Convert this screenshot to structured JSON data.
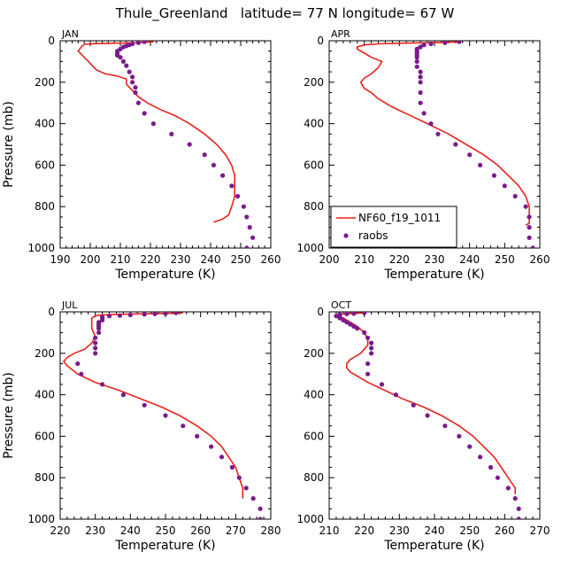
{
  "figure_title": "Thule_Greenland   latitude= 77 N longitude= 67 W",
  "colors": {
    "model": "#e8231c",
    "obs": "#7b1a8c",
    "axis": "#000000"
  },
  "legend": {
    "placement": "lower-right of APR panel",
    "model_label": "NF60_f19_1011",
    "obs_label": "raobs"
  },
  "chart_data": [
    {
      "type": "line",
      "title": "JAN",
      "xlabel": "Temperature (K)",
      "ylabel": "Pressure (mb)",
      "xlim": [
        190,
        260
      ],
      "ylim": [
        1000,
        0
      ],
      "xticks": [
        190,
        200,
        210,
        220,
        230,
        240,
        250,
        260
      ],
      "yticks": [
        0,
        200,
        400,
        600,
        800,
        1000
      ],
      "series": [
        {
          "name": "NF60_f19_1011",
          "kind": "line",
          "points": [
            [
              221,
              5
            ],
            [
              215,
              10
            ],
            [
              208,
              12
            ],
            [
              201,
              14
            ],
            [
              198,
              17
            ],
            [
              197,
              30
            ],
            [
              196,
              50
            ],
            [
              198,
              80
            ],
            [
              200,
              110
            ],
            [
              202,
              140
            ],
            [
              205,
              160
            ],
            [
              209,
              170
            ],
            [
              212,
              185
            ],
            [
              212,
              210
            ],
            [
              214,
              240
            ],
            [
              216,
              270
            ],
            [
              219,
              300
            ],
            [
              223,
              330
            ],
            [
              228,
              360
            ],
            [
              233,
              400
            ],
            [
              238,
              450
            ],
            [
              242,
              500
            ],
            [
              245,
              550
            ],
            [
              247,
              600
            ],
            [
              248,
              650
            ],
            [
              248,
              700
            ],
            [
              248,
              750
            ],
            [
              247,
              800
            ],
            [
              246,
              840
            ],
            [
              244,
              860
            ],
            [
              241,
              875
            ]
          ]
        },
        {
          "name": "raobs",
          "kind": "points",
          "points": [
            [
              218,
              5
            ],
            [
              216,
              10
            ],
            [
              214,
              15
            ],
            [
              213,
              20
            ],
            [
              212,
              25
            ],
            [
              211,
              30
            ],
            [
              210,
              40
            ],
            [
              209,
              50
            ],
            [
              209,
              60
            ],
            [
              209,
              70
            ],
            [
              210,
              80
            ],
            [
              211,
              100
            ],
            [
              212,
              120
            ],
            [
              213,
              150
            ],
            [
              214,
              175
            ],
            [
              214,
              200
            ],
            [
              215,
              225
            ],
            [
              215,
              250
            ],
            [
              216,
              300
            ],
            [
              218,
              350
            ],
            [
              221,
              400
            ],
            [
              227,
              450
            ],
            [
              233,
              500
            ],
            [
              238,
              550
            ],
            [
              241,
              600
            ],
            [
              244,
              650
            ],
            [
              247,
              700
            ],
            [
              249,
              750
            ],
            [
              251,
              800
            ],
            [
              252,
              850
            ],
            [
              253,
              900
            ],
            [
              254,
              950
            ],
            [
              252,
              1000
            ]
          ]
        }
      ]
    },
    {
      "type": "line",
      "title": "APR",
      "xlabel": "Temperature (K)",
      "ylabel": "",
      "xlim": [
        200,
        260
      ],
      "ylim": [
        1000,
        0
      ],
      "xticks": [
        200,
        210,
        220,
        230,
        240,
        250,
        260
      ],
      "yticks": [
        0,
        200,
        400,
        600,
        800,
        1000
      ],
      "series": [
        {
          "name": "NF60_f19_1011",
          "kind": "line",
          "points": [
            [
              237,
              5
            ],
            [
              232,
              8
            ],
            [
              227,
              10
            ],
            [
              220,
              12
            ],
            [
              214,
              15
            ],
            [
              210,
              20
            ],
            [
              208,
              30
            ],
            [
              208,
              40
            ],
            [
              210,
              60
            ],
            [
              212,
              80
            ],
            [
              215,
              100
            ],
            [
              214,
              130
            ],
            [
              212,
              160
            ],
            [
              210,
              180
            ],
            [
              209,
              200
            ],
            [
              210,
              230
            ],
            [
              212,
              250
            ],
            [
              214,
              280
            ],
            [
              218,
              320
            ],
            [
              223,
              360
            ],
            [
              228,
              400
            ],
            [
              234,
              450
            ],
            [
              239,
              500
            ],
            [
              244,
              550
            ],
            [
              248,
              600
            ],
            [
              251,
              650
            ],
            [
              254,
              700
            ],
            [
              256,
              750
            ],
            [
              257,
              800
            ],
            [
              257,
              850
            ],
            [
              257,
              880
            ],
            [
              256,
              890
            ]
          ]
        },
        {
          "name": "raobs",
          "kind": "points",
          "points": [
            [
              237,
              5
            ],
            [
              233,
              10
            ],
            [
              229,
              15
            ],
            [
              227,
              20
            ],
            [
              226,
              30
            ],
            [
              225,
              40
            ],
            [
              225,
              50
            ],
            [
              225,
              60
            ],
            [
              225,
              70
            ],
            [
              225,
              80
            ],
            [
              225,
              100
            ],
            [
              225,
              125
            ],
            [
              226,
              150
            ],
            [
              226,
              175
            ],
            [
              226,
              200
            ],
            [
              226,
              250
            ],
            [
              226,
              300
            ],
            [
              227,
              350
            ],
            [
              229,
              400
            ],
            [
              231,
              450
            ],
            [
              236,
              500
            ],
            [
              240,
              550
            ],
            [
              243,
              600
            ],
            [
              247,
              650
            ],
            [
              250,
              700
            ],
            [
              253,
              750
            ],
            [
              256,
              800
            ],
            [
              257,
              850
            ],
            [
              257,
              900
            ],
            [
              257,
              950
            ],
            [
              258,
              1000
            ]
          ]
        }
      ]
    },
    {
      "type": "line",
      "title": "JUL",
      "xlabel": "Temperature (K)",
      "ylabel": "Pressure (mb)",
      "xlim": [
        220,
        280
      ],
      "ylim": [
        1000,
        0
      ],
      "xticks": [
        220,
        230,
        240,
        250,
        260,
        270,
        280
      ],
      "yticks": [
        0,
        200,
        400,
        600,
        800,
        1000
      ],
      "series": [
        {
          "name": "NF60_f19_1011",
          "kind": "line",
          "points": [
            [
              255,
              5
            ],
            [
              249,
              8
            ],
            [
              243,
              10
            ],
            [
              237,
              12
            ],
            [
              233,
              14
            ],
            [
              231,
              16
            ],
            [
              230,
              20
            ],
            [
              229,
              30
            ],
            [
              229,
              50
            ],
            [
              229,
              80
            ],
            [
              230,
              120
            ],
            [
              229,
              150
            ],
            [
              227,
              180
            ],
            [
              224,
              200
            ],
            [
              222,
              220
            ],
            [
              221,
              240
            ],
            [
              222,
              260
            ],
            [
              225,
              300
            ],
            [
              230,
              340
            ],
            [
              237,
              380
            ],
            [
              243,
              420
            ],
            [
              249,
              460
            ],
            [
              254,
              500
            ],
            [
              259,
              550
            ],
            [
              263,
              600
            ],
            [
              266,
              650
            ],
            [
              268,
              700
            ],
            [
              270,
              750
            ],
            [
              271,
              800
            ],
            [
              272,
              850
            ],
            [
              272,
              900
            ]
          ]
        },
        {
          "name": "raobs",
          "kind": "points",
          "points": [
            [
              253,
              5
            ],
            [
              250,
              8
            ],
            [
              247,
              10
            ],
            [
              244,
              12
            ],
            [
              240,
              15
            ],
            [
              237,
              18
            ],
            [
              234,
              20
            ],
            [
              232,
              25
            ],
            [
              232,
              30
            ],
            [
              232,
              40
            ],
            [
              231,
              50
            ],
            [
              231,
              60
            ],
            [
              231,
              70
            ],
            [
              231,
              80
            ],
            [
              231,
              100
            ],
            [
              230,
              125
            ],
            [
              230,
              150
            ],
            [
              230,
              175
            ],
            [
              230,
              200
            ],
            [
              225,
              250
            ],
            [
              226,
              300
            ],
            [
              232,
              350
            ],
            [
              238,
              400
            ],
            [
              244,
              450
            ],
            [
              250,
              500
            ],
            [
              255,
              550
            ],
            [
              259,
              600
            ],
            [
              263,
              650
            ],
            [
              266,
              700
            ],
            [
              269,
              750
            ],
            [
              271,
              800
            ],
            [
              273,
              850
            ],
            [
              275,
              900
            ],
            [
              277,
              950
            ],
            [
              277,
              1000
            ]
          ]
        }
      ]
    },
    {
      "type": "line",
      "title": "OCT",
      "xlabel": "Temperature (K)",
      "ylabel": "",
      "xlim": [
        210,
        270
      ],
      "ylim": [
        1000,
        0
      ],
      "xticks": [
        210,
        220,
        230,
        240,
        250,
        260,
        270
      ],
      "yticks": [
        0,
        200,
        400,
        600,
        800,
        1000
      ],
      "series": [
        {
          "name": "NF60_f19_1011",
          "kind": "line",
          "points": [
            [
              220,
              5
            ],
            [
              217,
              7
            ],
            [
              214,
              10
            ],
            [
              213,
              15
            ],
            [
              213,
              20
            ],
            [
              214,
              30
            ],
            [
              216,
              50
            ],
            [
              218,
              70
            ],
            [
              220,
              100
            ],
            [
              221,
              130
            ],
            [
              221,
              160
            ],
            [
              219,
              200
            ],
            [
              216,
              230
            ],
            [
              215,
              250
            ],
            [
              215,
              270
            ],
            [
              216,
              290
            ],
            [
              218,
              310
            ],
            [
              221,
              340
            ],
            [
              226,
              380
            ],
            [
              231,
              420
            ],
            [
              237,
              460
            ],
            [
              242,
              500
            ],
            [
              247,
              550
            ],
            [
              251,
              600
            ],
            [
              254,
              650
            ],
            [
              257,
              700
            ],
            [
              259,
              750
            ],
            [
              261,
              800
            ],
            [
              263,
              850
            ],
            [
              263,
              880
            ]
          ]
        },
        {
          "name": "raobs",
          "kind": "points",
          "points": [
            [
              220,
              5
            ],
            [
              217,
              8
            ],
            [
              215,
              10
            ],
            [
              213,
              12
            ],
            [
              213,
              15
            ],
            [
              212,
              20
            ],
            [
              213,
              25
            ],
            [
              213,
              30
            ],
            [
              214,
              40
            ],
            [
              215,
              50
            ],
            [
              216,
              60
            ],
            [
              217,
              70
            ],
            [
              218,
              80
            ],
            [
              220,
              100
            ],
            [
              221,
              125
            ],
            [
              222,
              150
            ],
            [
              222,
              175
            ],
            [
              222,
              200
            ],
            [
              221,
              250
            ],
            [
              221,
              300
            ],
            [
              225,
              350
            ],
            [
              229,
              400
            ],
            [
              234,
              450
            ],
            [
              238,
              500
            ],
            [
              243,
              550
            ],
            [
              247,
              600
            ],
            [
              250,
              650
            ],
            [
              253,
              700
            ],
            [
              256,
              750
            ],
            [
              258,
              800
            ],
            [
              261,
              850
            ],
            [
              263,
              900
            ],
            [
              264,
              950
            ],
            [
              264,
              1000
            ]
          ]
        }
      ]
    }
  ]
}
